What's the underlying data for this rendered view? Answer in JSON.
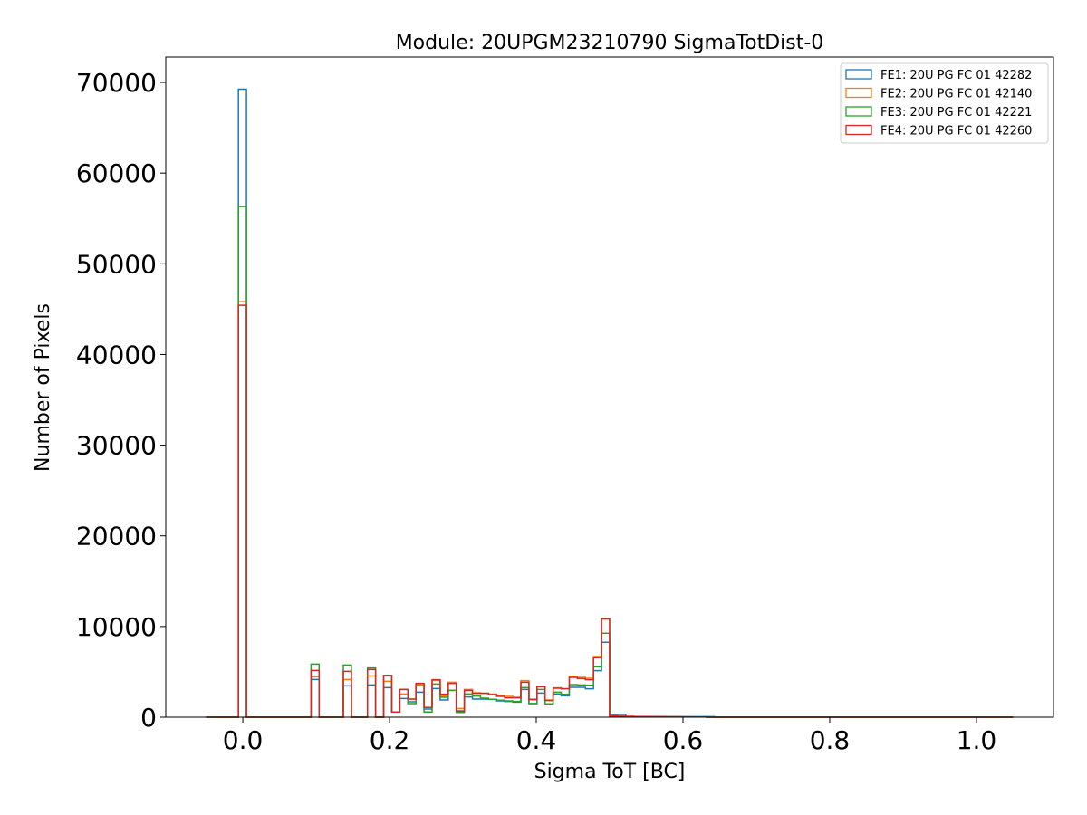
{
  "chart_data": {
    "type": "histogram-step",
    "title": "Module: 20UPGM23210790 SigmaTotDist-0",
    "xlabel": "Sigma ToT [BC]",
    "ylabel": "Number of Pixels",
    "xlim": [
      -0.105,
      1.105
    ],
    "ylim": [
      0,
      72800
    ],
    "bins": {
      "start": -0.05,
      "width": 0.011,
      "count": 100
    },
    "xticks": [
      "0.0",
      "0.2",
      "0.4",
      "0.6",
      "0.8",
      "1.0"
    ],
    "xtick_values": [
      0,
      0.2,
      0.4,
      0.6,
      0.8,
      1.0
    ],
    "yticks": [
      "0",
      "10000",
      "20000",
      "30000",
      "40000",
      "50000",
      "60000",
      "70000"
    ],
    "ytick_values": [
      0,
      10000,
      20000,
      30000,
      40000,
      50000,
      60000,
      70000
    ],
    "legend_position": "top-right",
    "grid": false,
    "series": [
      {
        "name": "FE1: 20U PG FC 01 42282",
        "color": "#1f77b4",
        "values": [
          0,
          0,
          0,
          0,
          69260,
          0,
          0,
          0,
          0,
          0,
          0,
          0,
          0,
          4160,
          0,
          0,
          0,
          3460,
          0,
          0,
          3560,
          0,
          3260,
          570,
          2060,
          1700,
          2760,
          900,
          3160,
          1900,
          2960,
          700,
          2230,
          2000,
          2000,
          1970,
          1800,
          1730,
          1660,
          3060,
          1500,
          2660,
          1470,
          2560,
          2360,
          3300,
          3300,
          3130,
          5130,
          8260,
          300,
          300,
          60,
          60,
          60,
          60,
          60,
          60,
          60,
          60,
          60,
          60,
          60,
          0,
          0,
          0,
          0,
          0,
          0,
          0,
          0,
          0,
          0,
          0,
          0,
          0,
          0,
          0,
          0,
          0,
          0,
          0,
          0,
          0,
          0,
          0,
          0,
          0,
          0,
          0,
          0,
          0,
          0,
          0,
          0,
          0,
          0,
          0,
          0,
          0
        ]
      },
      {
        "name": "FE2: 20U PG FC 01 42140",
        "color": "#ff7f0e",
        "values": [
          0,
          0,
          0,
          0,
          45820,
          0,
          0,
          0,
          0,
          0,
          0,
          0,
          0,
          4460,
          0,
          0,
          0,
          4160,
          0,
          0,
          4560,
          0,
          3960,
          570,
          2560,
          2000,
          3600,
          1070,
          4050,
          2330,
          3860,
          960,
          3060,
          2700,
          2650,
          2550,
          2400,
          2300,
          2200,
          4030,
          2000,
          3400,
          1900,
          3250,
          3150,
          4500,
          4400,
          4300,
          6700,
          10830,
          150,
          100,
          80,
          80,
          60,
          60,
          50,
          50,
          40,
          40,
          30,
          30,
          0,
          0,
          0,
          0,
          0,
          0,
          0,
          0,
          0,
          0,
          0,
          0,
          0,
          0,
          0,
          0,
          0,
          0,
          0,
          0,
          0,
          0,
          0,
          0,
          0,
          0,
          0,
          0,
          0,
          0,
          0,
          0,
          0,
          0,
          0,
          0,
          0,
          0
        ]
      },
      {
        "name": "FE3: 20U PG FC 01 42221",
        "color": "#2ca02c",
        "values": [
          0,
          0,
          0,
          0,
          56310,
          0,
          0,
          0,
          0,
          0,
          0,
          0,
          0,
          5860,
          0,
          0,
          0,
          5760,
          0,
          0,
          5430,
          0,
          4600,
          570,
          3060,
          1500,
          3460,
          570,
          3660,
          2200,
          2960,
          530,
          2560,
          2330,
          2100,
          1970,
          1870,
          1800,
          1730,
          3260,
          1500,
          3060,
          1470,
          2760,
          2530,
          3600,
          3560,
          3530,
          5560,
          9260,
          100,
          100,
          80,
          60,
          50,
          50,
          40,
          40,
          30,
          30,
          20,
          20,
          0,
          0,
          0,
          0,
          0,
          0,
          0,
          0,
          0,
          0,
          0,
          0,
          0,
          0,
          0,
          0,
          0,
          0,
          0,
          0,
          0,
          0,
          0,
          0,
          0,
          0,
          0,
          0,
          0,
          0,
          0,
          0,
          0,
          0,
          0,
          0,
          0,
          0
        ]
      },
      {
        "name": "FE4: 20U PG FC 01 42260",
        "color": "#d62728",
        "values": [
          0,
          0,
          0,
          0,
          45420,
          0,
          0,
          0,
          0,
          0,
          0,
          0,
          0,
          5160,
          0,
          0,
          0,
          5060,
          0,
          0,
          5260,
          0,
          4600,
          570,
          3060,
          2000,
          3730,
          1070,
          4130,
          2530,
          3730,
          660,
          2960,
          2630,
          2630,
          2500,
          2300,
          2130,
          2130,
          3860,
          1930,
          3360,
          1830,
          3200,
          3130,
          4400,
          4260,
          4130,
          6560,
          10830,
          150,
          100,
          100,
          80,
          80,
          60,
          60,
          40,
          40,
          30,
          30,
          20,
          0,
          0,
          0,
          0,
          0,
          0,
          0,
          0,
          0,
          0,
          0,
          0,
          0,
          0,
          0,
          0,
          0,
          0,
          0,
          0,
          0,
          0,
          0,
          0,
          0,
          0,
          0,
          0,
          0,
          0,
          0,
          0,
          0,
          0,
          0,
          0,
          0,
          0
        ]
      }
    ]
  }
}
